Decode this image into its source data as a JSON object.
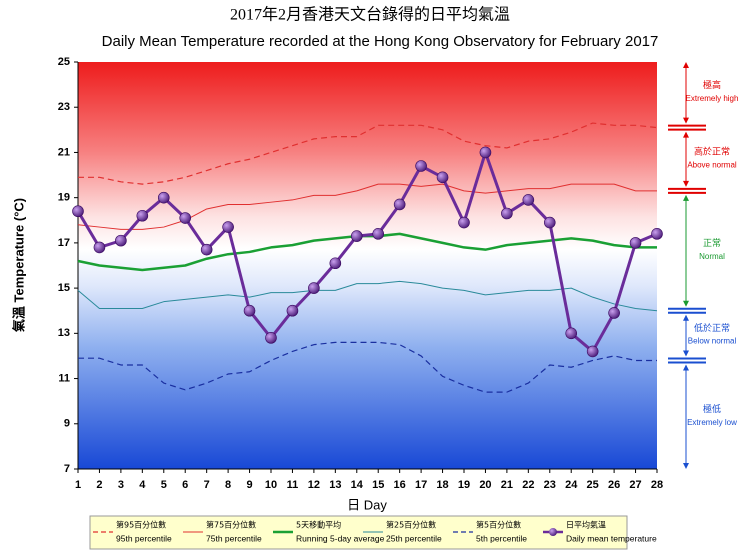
{
  "chart_data": {
    "type": "line",
    "title": "2017年2月香港天文台錄得的日平均氣溫",
    "subtitle": "Daily Mean Temperature recorded at the Hong Kong Observatory for February 2017",
    "y_label": "氣溫 Temperature (°C)",
    "x_label": "日 Day",
    "x": [
      1,
      2,
      3,
      4,
      5,
      6,
      7,
      8,
      9,
      10,
      11,
      12,
      13,
      14,
      15,
      16,
      17,
      18,
      19,
      20,
      21,
      22,
      23,
      24,
      25,
      26,
      27,
      28
    ],
    "xlim": [
      1,
      28
    ],
    "xticks": [
      1,
      2,
      3,
      4,
      5,
      6,
      7,
      8,
      9,
      10,
      11,
      12,
      13,
      14,
      15,
      16,
      17,
      18,
      19,
      20,
      21,
      22,
      23,
      24,
      25,
      26,
      27,
      28
    ],
    "ylim": [
      7,
      25
    ],
    "yticks": [
      7,
      9,
      11,
      13,
      15,
      17,
      19,
      21,
      23,
      25
    ],
    "series": [
      {
        "name": "95th percentile",
        "name_zh": "第95百分位數",
        "color": "#e03030",
        "line_style": "dashed",
        "line_width": 1.2,
        "values": [
          19.9,
          19.9,
          19.7,
          19.6,
          19.7,
          19.9,
          20.2,
          20.5,
          20.7,
          21.0,
          21.3,
          21.6,
          21.7,
          21.7,
          22.2,
          22.2,
          22.2,
          22.0,
          21.5,
          21.3,
          21.2,
          21.5,
          21.6,
          21.9,
          22.3,
          22.2,
          22.2,
          22.1
        ]
      },
      {
        "name": "75th percentile",
        "name_zh": "第75百分位數",
        "color": "#e03030",
        "line_style": "solid",
        "line_width": 1,
        "values": [
          17.8,
          17.7,
          17.6,
          17.6,
          17.7,
          18.0,
          18.5,
          18.7,
          18.7,
          18.8,
          18.9,
          19.1,
          19.1,
          19.3,
          19.6,
          19.6,
          19.5,
          19.6,
          19.3,
          19.2,
          19.3,
          19.4,
          19.4,
          19.6,
          19.6,
          19.6,
          19.3,
          19.3
        ]
      },
      {
        "name": "Running 5-day average",
        "name_zh": "5天移動平均",
        "color": "#1aa034",
        "line_style": "solid",
        "line_width": 2.5,
        "values": [
          16.2,
          16.0,
          15.9,
          15.8,
          15.9,
          16.0,
          16.3,
          16.5,
          16.6,
          16.8,
          16.9,
          17.1,
          17.2,
          17.3,
          17.3,
          17.4,
          17.2,
          17.0,
          16.8,
          16.7,
          16.9,
          17.0,
          17.1,
          17.2,
          17.1,
          16.9,
          16.8,
          16.8
        ]
      },
      {
        "name": "25th percentile",
        "name_zh": "第25百分位數",
        "color": "#2a8a9a",
        "line_style": "solid",
        "line_width": 1,
        "values": [
          14.9,
          14.1,
          14.1,
          14.1,
          14.4,
          14.5,
          14.6,
          14.7,
          14.6,
          14.8,
          14.8,
          14.9,
          14.9,
          15.2,
          15.2,
          15.3,
          15.2,
          15.0,
          14.9,
          14.7,
          14.8,
          14.9,
          14.9,
          15.0,
          14.6,
          14.3,
          14.1,
          14.0
        ]
      },
      {
        "name": "5th percentile",
        "name_zh": "第5百分位數",
        "color": "#1a2fa0",
        "line_style": "dashed",
        "line_width": 1.2,
        "values": [
          11.9,
          11.9,
          11.6,
          11.6,
          10.8,
          10.5,
          10.8,
          11.2,
          11.3,
          11.8,
          12.2,
          12.5,
          12.6,
          12.6,
          12.6,
          12.5,
          12.0,
          11.1,
          10.7,
          10.4,
          10.4,
          10.8,
          11.6,
          11.5,
          11.8,
          12.0,
          11.8,
          11.8
        ]
      },
      {
        "name": "Daily mean temperature",
        "name_zh": "日平均氣溫",
        "color": "#6a2c9a",
        "line_style": "solid",
        "line_width": 3,
        "marker": true,
        "values": [
          18.4,
          16.8,
          17.1,
          18.2,
          19.0,
          18.1,
          16.7,
          17.7,
          14.0,
          12.8,
          14.0,
          15.0,
          16.1,
          17.3,
          17.4,
          18.7,
          20.4,
          19.9,
          17.9,
          21.0,
          18.3,
          18.9,
          17.9,
          13.0,
          12.2,
          13.9,
          17.0,
          17.4
        ]
      }
    ],
    "bands": [
      {
        "zh": "極高",
        "en": "Extremely high",
        "color": "#e00000"
      },
      {
        "zh": "高於正常",
        "en": "Above normal",
        "color": "#e00000"
      },
      {
        "zh": "正常",
        "en": "Normal",
        "color": "#1a9a30"
      },
      {
        "zh": "低於正常",
        "en": "Below normal",
        "color": "#1a4fd0"
      },
      {
        "zh": "極低",
        "en": "Extremely low",
        "color": "#1a4fd0"
      }
    ]
  }
}
